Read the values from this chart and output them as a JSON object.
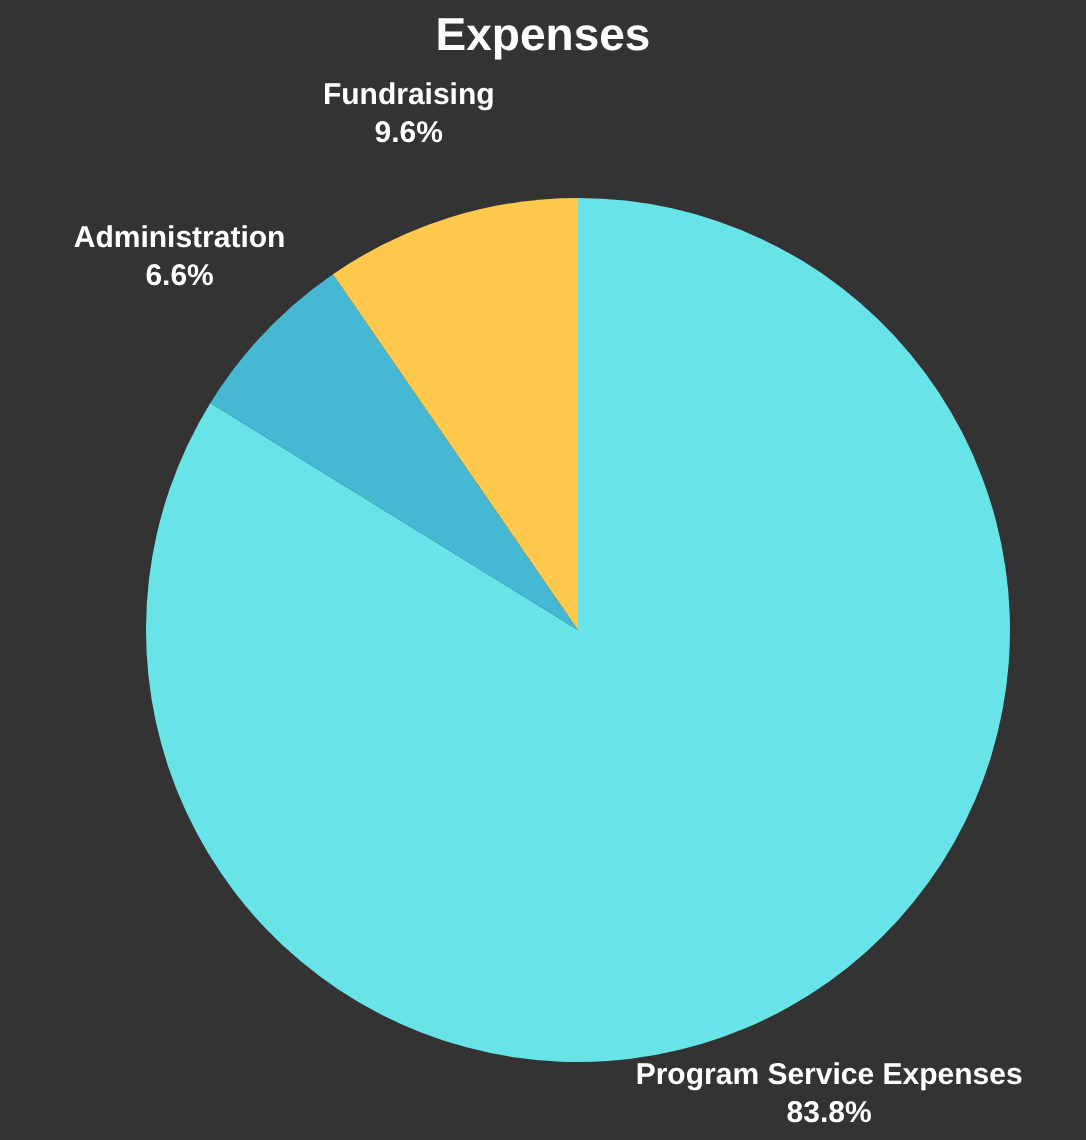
{
  "chart_data": {
    "type": "pie",
    "title": "Expenses",
    "categories": [
      "Program Service Expenses",
      "Administration",
      "Fundraising"
    ],
    "values": [
      83.8,
      6.6,
      9.6
    ],
    "value_labels": [
      "83.8%",
      "6.6%",
      "9.6%"
    ],
    "colors": [
      "#68e4e8",
      "#45b8d4",
      "#ffc94d"
    ],
    "legend": false
  }
}
